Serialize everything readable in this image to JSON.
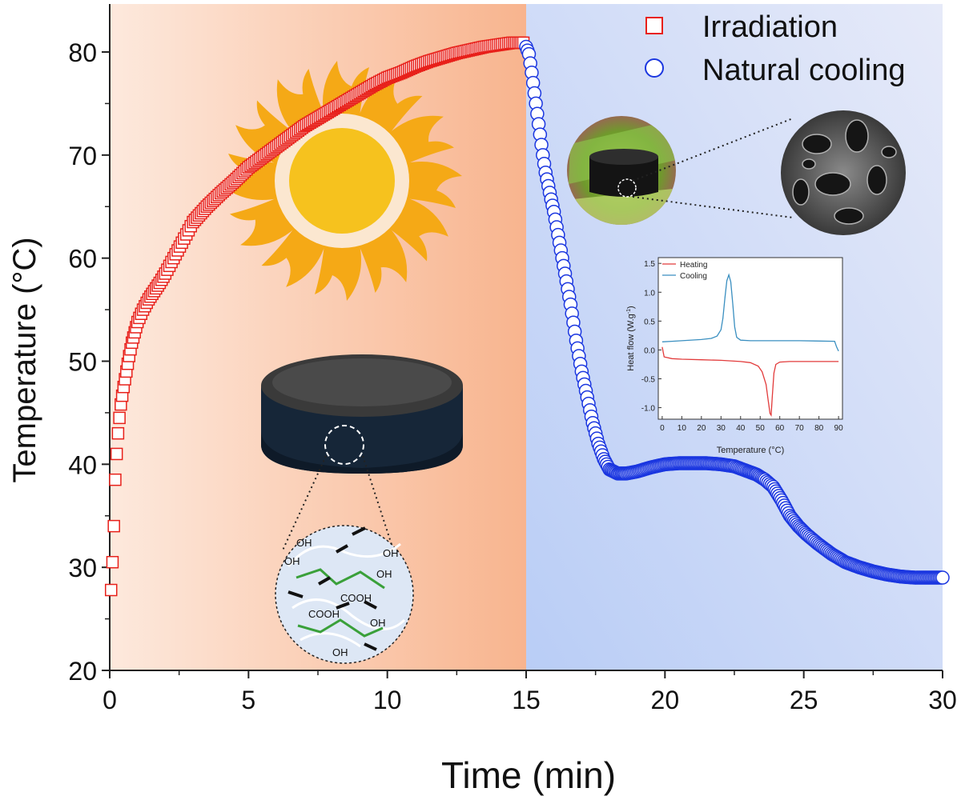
{
  "chart_data": [
    {
      "type": "scatter",
      "title": "",
      "xlabel": "Time (min)",
      "ylabel": "Temperature (°C)",
      "xlim": [
        0,
        30
      ],
      "ylim": [
        20,
        80
      ],
      "xticks": [
        0,
        5,
        10,
        15,
        20,
        25,
        30
      ],
      "yticks": [
        20,
        30,
        40,
        50,
        60,
        70,
        80
      ],
      "legend_position": "top-right",
      "grid": false,
      "background": {
        "irradiation_zone": [
          0,
          15
        ],
        "cooling_zone": [
          15,
          30
        ]
      },
      "series": [
        {
          "name": "Irradiation",
          "marker": "square-open",
          "color": "#e8201a",
          "x": [
            0.05,
            0.1,
            0.15,
            0.2,
            0.25,
            0.3,
            0.35,
            0.4,
            0.5,
            0.6,
            0.7,
            0.8,
            0.9,
            1.0,
            1.2,
            1.4,
            1.6,
            1.8,
            2.0,
            2.3,
            2.6,
            3.0,
            3.5,
            4.0,
            4.5,
            5.0,
            5.5,
            6.0,
            6.5,
            7.0,
            7.5,
            8.0,
            8.5,
            9.0,
            9.5,
            10.0,
            10.5,
            11.0,
            11.5,
            12.0,
            12.5,
            13.0,
            13.5,
            14.0,
            14.5,
            14.9
          ],
          "y": [
            27.8,
            30.5,
            34.0,
            38.5,
            41.0,
            43.0,
            44.5,
            45.8,
            47.5,
            49.0,
            50.5,
            51.8,
            52.8,
            53.8,
            55.0,
            56.0,
            56.8,
            57.6,
            58.5,
            60.0,
            61.5,
            63.5,
            65.0,
            66.3,
            67.5,
            68.8,
            69.8,
            70.8,
            71.8,
            72.8,
            73.6,
            74.4,
            75.2,
            76.0,
            76.8,
            77.5,
            78.0,
            78.6,
            79.1,
            79.5,
            79.9,
            80.2,
            80.5,
            80.7,
            80.9,
            80.9
          ]
        },
        {
          "name": "Natural cooling",
          "marker": "circle-open",
          "color": "#1a36e0",
          "x": [
            15.0,
            15.1,
            15.2,
            15.3,
            15.4,
            15.5,
            15.6,
            15.7,
            15.8,
            15.9,
            16.0,
            16.2,
            16.4,
            16.6,
            16.8,
            17.0,
            17.2,
            17.4,
            17.6,
            17.8,
            18.0,
            18.3,
            18.6,
            19.0,
            19.5,
            20.0,
            20.5,
            21.0,
            21.5,
            22.0,
            22.5,
            23.0,
            23.3,
            23.6,
            23.9,
            24.2,
            24.5,
            24.8,
            25.1,
            25.5,
            26.0,
            26.5,
            27.0,
            27.5,
            28.0,
            28.5,
            29.0,
            29.5,
            30.0
          ],
          "y": [
            80.5,
            79.8,
            78.0,
            76.0,
            74.0,
            72.0,
            70.0,
            68.3,
            67.0,
            65.7,
            64.5,
            61.5,
            58.5,
            55.5,
            52.0,
            49.0,
            46.5,
            44.0,
            42.0,
            40.5,
            39.5,
            39.1,
            39.1,
            39.3,
            39.7,
            40.0,
            40.1,
            40.1,
            40.1,
            40.0,
            39.8,
            39.3,
            39.0,
            38.5,
            37.8,
            36.5,
            35.0,
            34.0,
            33.2,
            32.3,
            31.3,
            30.5,
            30.0,
            29.6,
            29.3,
            29.1,
            29.0,
            29.0,
            29.0
          ]
        }
      ]
    },
    {
      "type": "line",
      "title": "",
      "xlabel": "Temperature (°C)",
      "ylabel": "Heat flow (W.g",
      "ylabel_sup": "-1",
      "ylabel_close": ")",
      "xlim": [
        -2,
        92
      ],
      "ylim": [
        -1.2,
        1.6
      ],
      "xticks": [
        0,
        10,
        20,
        30,
        40,
        50,
        60,
        70,
        80,
        90
      ],
      "yticks": [
        -1.0,
        -0.5,
        0.0,
        0.5,
        1.0,
        1.5
      ],
      "yticklabels": [
        "-1.0",
        "-0.5",
        "0.0",
        "0.5",
        "1.0",
        "1.5"
      ],
      "legend_position": "top-left",
      "series": [
        {
          "name": "Heating",
          "color": "#e23b3b",
          "x": [
            0,
            1,
            5,
            10,
            20,
            30,
            40,
            45,
            49,
            51,
            53,
            54,
            55,
            55.6,
            56.2,
            57,
            58,
            60,
            65,
            75,
            90
          ],
          "y": [
            0.05,
            -0.12,
            -0.15,
            -0.16,
            -0.17,
            -0.18,
            -0.2,
            -0.22,
            -0.28,
            -0.38,
            -0.6,
            -0.85,
            -1.1,
            -1.13,
            -0.8,
            -0.4,
            -0.25,
            -0.21,
            -0.2,
            -0.2,
            -0.2
          ]
        },
        {
          "name": "Cooling",
          "color": "#3a8fc0",
          "x": [
            0,
            5,
            10,
            20,
            25,
            28,
            30,
            31,
            32,
            33,
            34,
            35,
            36,
            37,
            38,
            40,
            45,
            55,
            70,
            88,
            89,
            90
          ],
          "y": [
            0.14,
            0.15,
            0.16,
            0.18,
            0.2,
            0.24,
            0.35,
            0.55,
            0.9,
            1.2,
            1.3,
            1.18,
            0.8,
            0.4,
            0.22,
            0.17,
            0.16,
            0.16,
            0.16,
            0.15,
            0.05,
            -0.02
          ]
        }
      ]
    }
  ],
  "illustrations": {
    "chemical_labels": [
      "OH",
      "OH",
      "OH",
      "OH",
      "COOH",
      "COOH",
      "OH",
      "OH"
    ]
  },
  "colors": {
    "irradiation_bg_light": "#fde9dd",
    "irradiation_bg_dark": "#f8b48e",
    "cooling_bg_light": "#b9cdf6",
    "cooling_bg_dark": "#e6eaf9",
    "sun_body": "#f6c21e",
    "sun_flame": "#f5a916"
  }
}
